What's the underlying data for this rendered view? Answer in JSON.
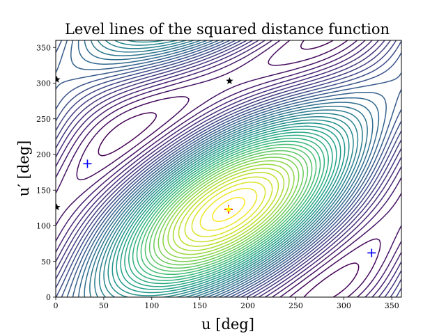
{
  "chart_data": {
    "type": "contour",
    "title": "Level lines of the squared distance function",
    "xlabel": "u [deg]",
    "ylabel": "u′ [deg]",
    "xlim": [
      0,
      360
    ],
    "ylim": [
      0,
      360
    ],
    "xticks": [
      "0",
      "50",
      "100",
      "150",
      "200",
      "250",
      "300",
      "350"
    ],
    "yticks": [
      "0",
      "50",
      "100",
      "150",
      "200",
      "250",
      "300",
      "350"
    ],
    "xtick_values": [
      0,
      50,
      100,
      150,
      200,
      250,
      300,
      350
    ],
    "ytick_values": [
      0,
      50,
      100,
      150,
      200,
      250,
      300,
      350
    ],
    "grid": false,
    "colormap": "viridis",
    "contour_levels": 40,
    "surface": {
      "maximum": [
        180,
        123
      ],
      "minima": [
        [
          33,
          187
        ],
        [
          329,
          62
        ]
      ],
      "saddles": [
        [
          181,
          303
        ],
        [
          1,
          305
        ],
        [
          1,
          126
        ]
      ]
    },
    "markers": [
      {
        "name": "maximum",
        "marker": "plus",
        "color": "#ff0000",
        "x": 180,
        "y": 123
      },
      {
        "name": "maximum",
        "marker": "star",
        "color": "#ffff00",
        "x": 180,
        "y": 123
      },
      {
        "name": "minimum",
        "marker": "plus",
        "color": "#0000ff",
        "x": 33,
        "y": 187
      },
      {
        "name": "minimum",
        "marker": "plus",
        "color": "#0000ff",
        "x": 329,
        "y": 62
      },
      {
        "name": "saddle",
        "marker": "star",
        "color": "#000000",
        "x": 181,
        "y": 303
      },
      {
        "name": "saddle",
        "marker": "star",
        "color": "#000000",
        "x": 1,
        "y": 305
      },
      {
        "name": "saddle",
        "marker": "star",
        "color": "#000000",
        "x": 1,
        "y": 126
      }
    ]
  }
}
